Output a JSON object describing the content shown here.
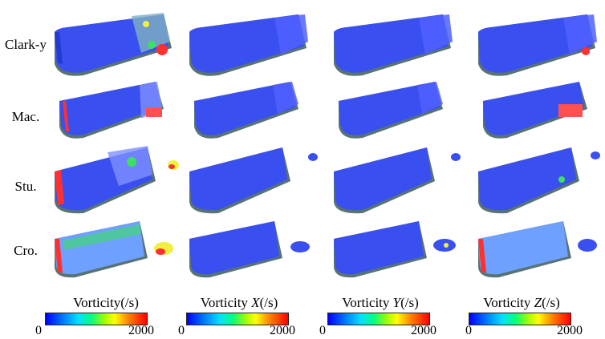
{
  "rows": [
    {
      "label": "Clark-y"
    },
    {
      "label": "Mac."
    },
    {
      "label": "Stu."
    },
    {
      "label": "Cro."
    }
  ],
  "columns": [
    {
      "title_prefix": "Vorticity",
      "title_var": "",
      "title_suffix": "(/s)"
    },
    {
      "title_prefix": "Vorticity ",
      "title_var": "X",
      "title_suffix": "(/s)"
    },
    {
      "title_prefix": "Vorticity ",
      "title_var": "Y",
      "title_suffix": "(/s)"
    },
    {
      "title_prefix": "Vorticity ",
      "title_var": "Z",
      "title_suffix": "(/s)"
    }
  ],
  "colorbar": {
    "min_label": "0",
    "max_label": "2000",
    "min": 0,
    "max": 2000
  },
  "colors": {
    "body_blue": "#3a4ff0",
    "body_dark": "#243ad0",
    "side_gray": "#5f7f80",
    "bottom_gray": "#587472",
    "accent_red": "#ff3030",
    "accent_green": "#3ce060",
    "accent_yellow": "#f0f040"
  },
  "icons": {
    "vortex_blob": "isosurface-blob",
    "colorbar": "jet-gradient"
  }
}
